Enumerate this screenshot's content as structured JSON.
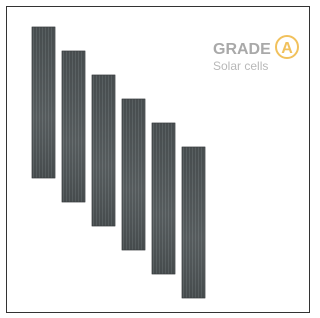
{
  "badge": {
    "grade": "GRADE",
    "letter": "A",
    "caption": "Solar cells"
  }
}
